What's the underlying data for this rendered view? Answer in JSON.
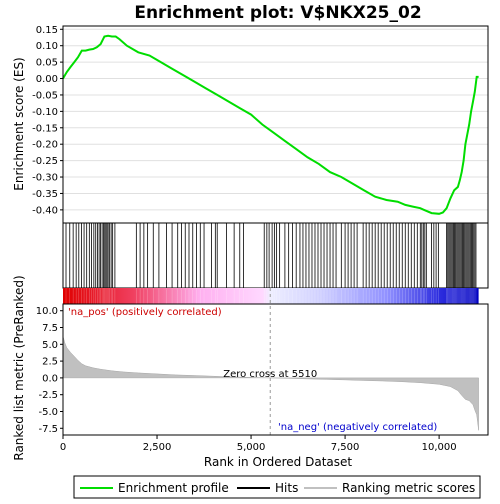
{
  "chart_data": {
    "type": "line",
    "title": "Enrichment plot: V$NKX25_02",
    "x_axis": {
      "label": "Rank in Ordered Dataset",
      "range": [
        0,
        11300
      ],
      "ticks": [
        0,
        2500,
        5000,
        7500,
        10000
      ],
      "tick_labels": [
        "0",
        "2,500",
        "5,000",
        "7,500",
        "10,000"
      ]
    },
    "panels": {
      "enrichment": {
        "ylabel": "Enrichment score (ES)",
        "ylim": [
          -0.44,
          0.16
        ],
        "yticks": [
          0.15,
          0.1,
          0.05,
          0.0,
          -0.05,
          -0.1,
          -0.15,
          -0.2,
          -0.25,
          -0.3,
          -0.35,
          -0.4
        ],
        "ytick_labels": [
          "0.15",
          "0.10",
          "0.05",
          "0.00",
          "-0.05",
          "-0.10",
          "-0.15",
          "-0.20",
          "-0.25",
          "-0.30",
          "-0.35",
          "-0.40"
        ],
        "series": [
          {
            "name": "Enrichment profile",
            "color": "#00dd00",
            "x": [
              0,
              100,
              200,
              300,
              400,
              500,
              600,
              700,
              800,
              900,
              1000,
              1100,
              1200,
              1300,
              1400,
              1500,
              1700,
              2000,
              2300,
              2600,
              2900,
              3200,
              3500,
              3800,
              4100,
              4400,
              4700,
              5000,
              5300,
              5600,
              5900,
              6200,
              6500,
              6800,
              7100,
              7400,
              7700,
              8000,
              8300,
              8600,
              8900,
              9100,
              9300,
              9500,
              9600,
              9800,
              10000,
              10100,
              10200,
              10300,
              10400,
              10500,
              10550,
              10600,
              10650,
              10700,
              10750,
              10800,
              10850,
              10900,
              10950,
              11000,
              11050
            ],
            "values": [
              0.0,
              0.02,
              0.035,
              0.05,
              0.065,
              0.085,
              0.085,
              0.088,
              0.09,
              0.095,
              0.105,
              0.128,
              0.13,
              0.128,
              0.128,
              0.12,
              0.1,
              0.08,
              0.07,
              0.05,
              0.03,
              0.01,
              -0.01,
              -0.03,
              -0.05,
              -0.07,
              -0.09,
              -0.11,
              -0.14,
              -0.165,
              -0.19,
              -0.215,
              -0.24,
              -0.26,
              -0.285,
              -0.3,
              -0.32,
              -0.34,
              -0.36,
              -0.37,
              -0.375,
              -0.385,
              -0.39,
              -0.395,
              -0.4,
              -0.41,
              -0.412,
              -0.408,
              -0.395,
              -0.365,
              -0.34,
              -0.33,
              -0.31,
              -0.285,
              -0.25,
              -0.2,
              -0.17,
              -0.14,
              -0.1,
              -0.07,
              -0.04,
              0.005,
              0.005
            ]
          }
        ]
      },
      "hits": {
        "name": "Hits",
        "positions": [
          80,
          180,
          270,
          350,
          420,
          490,
          560,
          630,
          700,
          760,
          820,
          870,
          920,
          960,
          1000,
          1040,
          1080,
          1110,
          1140,
          1170,
          1200,
          1240,
          1280,
          1320,
          1380,
          1950,
          2050,
          2150,
          2250,
          2400,
          2550,
          2750,
          2900,
          3050,
          3150,
          3250,
          3350,
          3450,
          3550,
          3650,
          3750,
          3950,
          4050,
          4100,
          4350,
          4550,
          4700,
          4800,
          5350,
          5420,
          5480,
          5560,
          5620,
          5680,
          5760,
          5900,
          6000,
          6100,
          6200,
          6300,
          6380,
          6460,
          6540,
          6620,
          6700,
          6780,
          6860,
          6940,
          7020,
          7100,
          7180,
          7260,
          7400,
          7500,
          7580,
          7660,
          7740,
          7820,
          7980,
          8060,
          8140,
          8220,
          8300,
          8380,
          8460,
          8540,
          8620,
          8700,
          8780,
          8860,
          8940,
          9020,
          9100,
          9180,
          9260,
          9340,
          9420,
          9500,
          9540,
          9580,
          9620,
          9660,
          9800,
          9860,
          9920,
          9980,
          10200,
          10230,
          10260,
          10290,
          10320,
          10350,
          10380,
          10410,
          10440,
          10470,
          10500,
          10530,
          10560,
          10590,
          10620,
          10650,
          10680,
          10710,
          10740,
          10770,
          10800,
          10830,
          10860,
          10890,
          10920,
          10950,
          10980
        ]
      },
      "ranked_metric": {
        "name": "Ranking metric scores",
        "ylabel": "Ranked list metric (PreRanked)",
        "ylim": [
          -8.5,
          11
        ],
        "yticks": [
          10.0,
          7.5,
          5.0,
          2.5,
          0.0,
          -2.5,
          -5.0,
          -7.5
        ],
        "ytick_labels": [
          "10.0",
          "7.5",
          "5.0",
          "2.5",
          "0.0",
          "-2.5",
          "-5.0",
          "-7.5"
        ],
        "x": [
          0,
          50,
          100,
          200,
          300,
          400,
          500,
          600,
          800,
          1000,
          1300,
          1600,
          2000,
          2500,
          3000,
          3500,
          4000,
          4500,
          5000,
          5510,
          6000,
          6500,
          7000,
          7500,
          8000,
          8500,
          9000,
          9500,
          10000,
          10300,
          10500,
          10600,
          10700,
          10800,
          10900,
          10950,
          11000,
          11050
        ],
        "values": [
          6.2,
          5.2,
          4.5,
          3.8,
          3.2,
          2.6,
          2.1,
          1.8,
          1.5,
          1.3,
          1.05,
          0.9,
          0.75,
          0.6,
          0.45,
          0.35,
          0.25,
          0.15,
          0.07,
          0.0,
          -0.07,
          -0.15,
          -0.22,
          -0.3,
          -0.38,
          -0.46,
          -0.56,
          -0.72,
          -0.95,
          -1.3,
          -1.9,
          -2.6,
          -3.2,
          -3.4,
          -4.0,
          -4.8,
          -5.5,
          -7.8
        ],
        "zero_cross_label": "Zero cross at 5510",
        "zero_cross_x": 5510,
        "pos_label": "'na_pos' (positively correlated)",
        "neg_label": "'na_neg' (negatively correlated)"
      }
    },
    "legend": {
      "placement": "bottom",
      "entries": [
        {
          "label": "Enrichment profile",
          "color": "#00dd00"
        },
        {
          "label": "Hits",
          "color": "#000000"
        },
        {
          "label": "Ranking metric scores",
          "color": "#c0c0c0"
        }
      ]
    }
  }
}
